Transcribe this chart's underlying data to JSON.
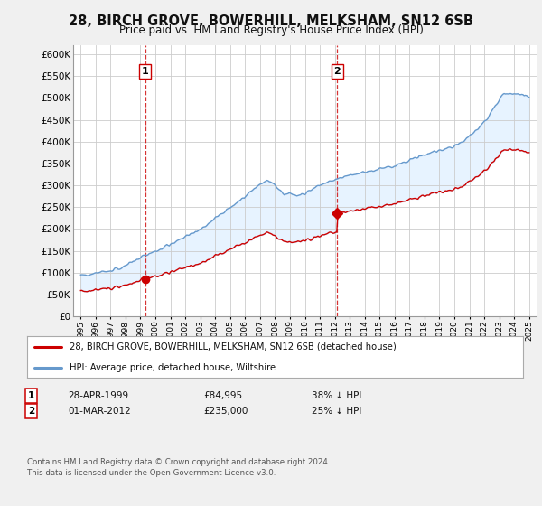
{
  "title_line1": "28, BIRCH GROVE, BOWERHILL, MELKSHAM, SN12 6SB",
  "title_line2": "Price paid vs. HM Land Registry's House Price Index (HPI)",
  "ytick_values": [
    0,
    50000,
    100000,
    150000,
    200000,
    250000,
    300000,
    350000,
    400000,
    450000,
    500000,
    550000,
    600000
  ],
  "hpi_color": "#6699cc",
  "hpi_fill_color": "#ddeeff",
  "price_color": "#cc0000",
  "bg_color": "#f0f0f0",
  "plot_bg_color": "#ffffff",
  "grid_color": "#cccccc",
  "purchase1_year": 1999.32,
  "purchase1_price": 84995,
  "purchase1_label": "1",
  "purchase2_year": 2012.17,
  "purchase2_price": 235000,
  "purchase2_label": "2",
  "legend_entry1": "28, BIRCH GROVE, BOWERHILL, MELKSHAM, SN12 6SB (detached house)",
  "legend_entry2": "HPI: Average price, detached house, Wiltshire",
  "table_row1": [
    "1",
    "28-APR-1999",
    "£84,995",
    "38% ↓ HPI"
  ],
  "table_row2": [
    "2",
    "01-MAR-2012",
    "£235,000",
    "25% ↓ HPI"
  ],
  "footnote": "Contains HM Land Registry data © Crown copyright and database right 2024.\nThis data is licensed under the Open Government Licence v3.0.",
  "xmin": 1994.5,
  "xmax": 2025.5,
  "ymin": 0,
  "ymax": 620000
}
